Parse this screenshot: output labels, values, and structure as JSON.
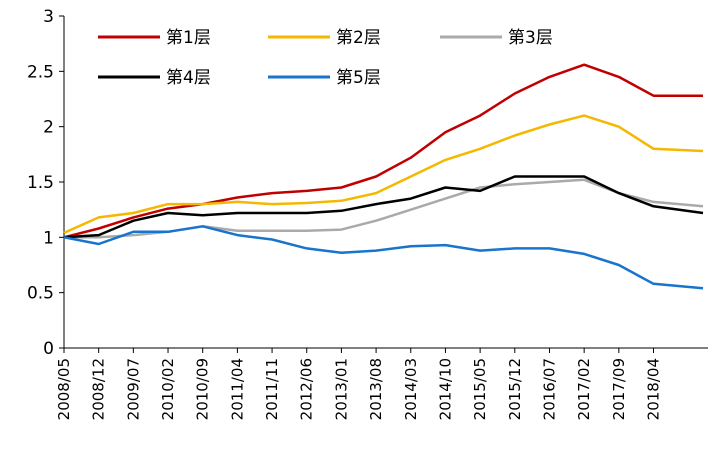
{
  "chart_data": {
    "type": "line",
    "title": "",
    "xlabel": "",
    "ylabel": "",
    "ylim": [
      0,
      3
    ],
    "yticks": [
      "0",
      "0.5",
      "1",
      "1.5",
      "2",
      "2.5",
      "3"
    ],
    "xlim": [
      "2008/05",
      "2019/03"
    ],
    "xticks": [
      "2008/05",
      "2008/12",
      "2009/07",
      "2010/02",
      "2010/09",
      "2011/04",
      "2011/11",
      "2012/06",
      "2013/01",
      "2013/08",
      "2014/03",
      "2014/10",
      "2015/05",
      "2015/12",
      "2016/07",
      "2017/02",
      "2017/09",
      "2018/04"
    ],
    "grid": false,
    "legend_position": "top",
    "series": [
      {
        "name": "第1层",
        "color": "#C00000",
        "x": [
          "2008/05",
          "2008/12",
          "2009/07",
          "2010/02",
          "2010/09",
          "2011/04",
          "2011/11",
          "2012/06",
          "2013/01",
          "2013/08",
          "2014/03",
          "2014/10",
          "2015/05",
          "2015/12",
          "2016/07",
          "2017/02",
          "2017/09",
          "2018/04",
          "2019/02"
        ],
        "values": [
          1.0,
          1.08,
          1.18,
          1.26,
          1.3,
          1.36,
          1.4,
          1.42,
          1.45,
          1.55,
          1.72,
          1.95,
          2.1,
          2.3,
          2.45,
          2.56,
          2.45,
          2.28,
          2.28
        ]
      },
      {
        "name": "第2层",
        "color": "#F5B800",
        "x": [
          "2008/05",
          "2008/12",
          "2009/07",
          "2010/02",
          "2010/09",
          "2011/04",
          "2011/11",
          "2012/06",
          "2013/01",
          "2013/08",
          "2014/03",
          "2014/10",
          "2015/05",
          "2015/12",
          "2016/07",
          "2017/02",
          "2017/09",
          "2018/04",
          "2019/02"
        ],
        "values": [
          1.04,
          1.18,
          1.22,
          1.3,
          1.3,
          1.32,
          1.3,
          1.31,
          1.33,
          1.4,
          1.55,
          1.7,
          1.8,
          1.92,
          2.02,
          2.1,
          2.0,
          1.8,
          1.78
        ]
      },
      {
        "name": "第3层",
        "color": "#AAAAAA",
        "x": [
          "2008/05",
          "2008/12",
          "2009/07",
          "2010/02",
          "2010/09",
          "2011/04",
          "2011/11",
          "2012/06",
          "2013/01",
          "2013/08",
          "2014/03",
          "2014/10",
          "2015/05",
          "2015/12",
          "2016/07",
          "2017/02",
          "2017/09",
          "2018/04",
          "2019/02"
        ],
        "values": [
          1.0,
          1.0,
          1.02,
          1.05,
          1.1,
          1.06,
          1.06,
          1.06,
          1.07,
          1.15,
          1.25,
          1.35,
          1.45,
          1.48,
          1.5,
          1.52,
          1.4,
          1.32,
          1.28
        ]
      },
      {
        "name": "第4层",
        "color": "#000000",
        "x": [
          "2008/05",
          "2008/12",
          "2009/07",
          "2010/02",
          "2010/09",
          "2011/04",
          "2011/11",
          "2012/06",
          "2013/01",
          "2013/08",
          "2014/03",
          "2014/10",
          "2015/05",
          "2015/12",
          "2016/07",
          "2017/02",
          "2017/09",
          "2018/04",
          "2019/02"
        ],
        "values": [
          1.0,
          1.02,
          1.15,
          1.22,
          1.2,
          1.22,
          1.22,
          1.22,
          1.24,
          1.3,
          1.35,
          1.45,
          1.42,
          1.55,
          1.55,
          1.55,
          1.4,
          1.28,
          1.22
        ]
      },
      {
        "name": "第5层",
        "color": "#1874CD",
        "x": [
          "2008/05",
          "2008/12",
          "2009/07",
          "2010/02",
          "2010/09",
          "2011/04",
          "2011/11",
          "2012/06",
          "2013/01",
          "2013/08",
          "2014/03",
          "2014/10",
          "2015/05",
          "2015/12",
          "2016/07",
          "2017/02",
          "2017/09",
          "2018/04",
          "2019/02"
        ],
        "values": [
          1.0,
          0.94,
          1.05,
          1.05,
          1.1,
          1.02,
          0.98,
          0.9,
          0.86,
          0.88,
          0.92,
          0.93,
          0.88,
          0.9,
          0.9,
          0.85,
          0.75,
          0.58,
          0.54
        ]
      }
    ]
  }
}
